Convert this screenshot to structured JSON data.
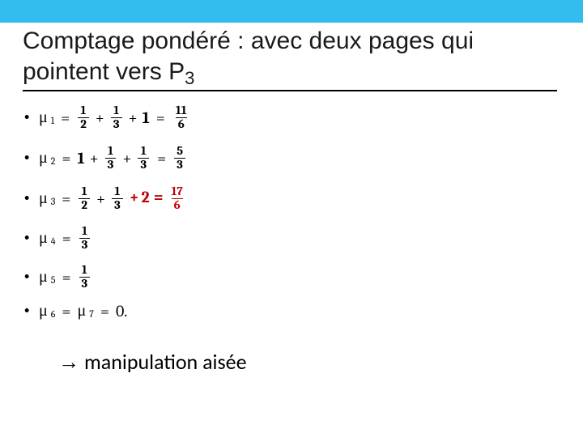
{
  "colors": {
    "top_bar": "#33bcee",
    "title_text": "#1a1a1a",
    "underline": "#000000",
    "body_text": "#000000",
    "highlight": "#c00000",
    "background": "#ffffff"
  },
  "typography": {
    "title_fontsize_pt": 22,
    "equation_fontsize_pt": 15,
    "fraction_fontsize_pt": 11,
    "conclusion_fontsize_pt": 20,
    "title_font": "Arial",
    "equation_font": "Cambria Math",
    "conclusion_font": "Calibri"
  },
  "title": {
    "line1": "Comptage pondéré : avec deux pages qui",
    "line2_prefix": "pointent vers P",
    "line2_sub": "3"
  },
  "equations": [
    {
      "mu_index": "1",
      "terms": [
        {
          "type": "frac",
          "num": "1",
          "den": "2"
        },
        {
          "type": "op",
          "text": "+"
        },
        {
          "type": "frac",
          "num": "1",
          "den": "3"
        },
        {
          "type": "op",
          "text": "+"
        },
        {
          "type": "num",
          "text": "1"
        }
      ],
      "result": {
        "type": "frac",
        "num": "11",
        "den": "6"
      },
      "highlight": false
    },
    {
      "mu_index": "2",
      "terms": [
        {
          "type": "num",
          "text": "1"
        },
        {
          "type": "op",
          "text": "+"
        },
        {
          "type": "frac",
          "num": "1",
          "den": "3"
        },
        {
          "type": "op",
          "text": "+"
        },
        {
          "type": "frac",
          "num": "1",
          "den": "3"
        }
      ],
      "result": {
        "type": "frac",
        "num": "5",
        "den": "3"
      },
      "highlight": false
    },
    {
      "mu_index": "3",
      "terms": [
        {
          "type": "frac",
          "num": "1",
          "den": "2"
        },
        {
          "type": "op",
          "text": "+"
        },
        {
          "type": "frac",
          "num": "1",
          "den": "3"
        }
      ],
      "highlight_terms": [
        {
          "type": "op",
          "text": "+"
        },
        {
          "type": "num",
          "text": "2"
        }
      ],
      "result": {
        "type": "frac",
        "num": "17",
        "den": "6"
      },
      "highlight": true
    },
    {
      "mu_index": "4",
      "terms": [],
      "result": {
        "type": "frac",
        "num": "1",
        "den": "3"
      },
      "highlight": false
    },
    {
      "mu_index": "5",
      "terms": [],
      "result": {
        "type": "frac",
        "num": "1",
        "den": "3"
      },
      "highlight": false
    },
    {
      "mu_index_a": "6",
      "mu_index_b": "7",
      "double_zero": true,
      "result_text": "0.",
      "highlight": false
    }
  ],
  "conclusion": {
    "arrow": "→",
    "text": "manipulation aisée"
  }
}
